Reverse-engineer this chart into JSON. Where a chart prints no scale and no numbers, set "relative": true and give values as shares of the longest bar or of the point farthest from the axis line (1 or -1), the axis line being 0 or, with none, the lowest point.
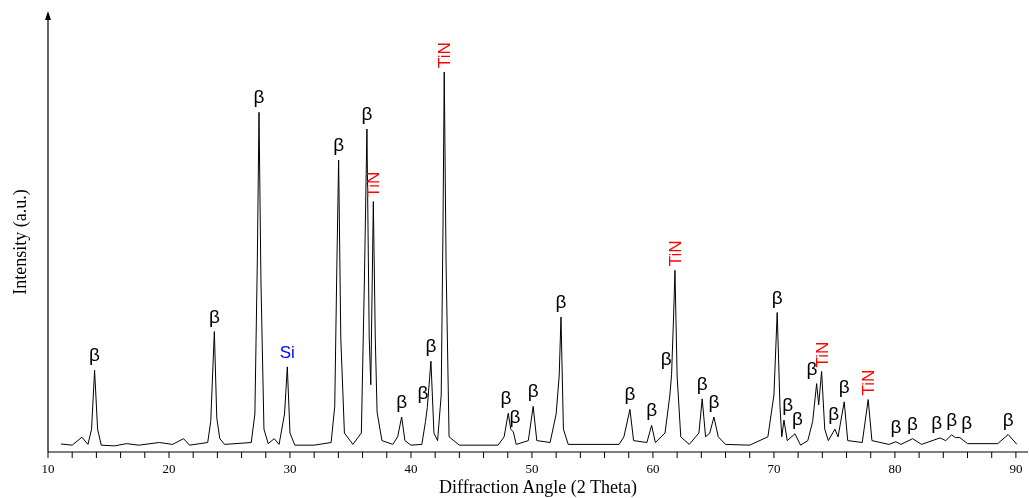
{
  "chart_data": {
    "type": "line",
    "relative": true,
    "xlabel": "Diffraction Angle (2 Theta)",
    "ylabel": "Intensity (a.u.)",
    "xlim": [
      10,
      91
    ],
    "xticks": [
      10,
      {
        "value": 12,
        "label": null
      },
      {
        "value": 14,
        "label": null
      },
      {
        "value": 16,
        "label": null
      },
      {
        "value": 18,
        "label": null
      },
      20,
      {
        "value": 22,
        "label": null
      },
      {
        "value": 24,
        "label": null
      },
      {
        "value": 26,
        "label": null
      },
      {
        "value": 28,
        "label": null
      },
      30,
      {
        "value": 32,
        "label": null
      },
      {
        "value": 34,
        "label": null
      },
      {
        "value": 36,
        "label": null
      },
      {
        "value": 38,
        "label": null
      },
      40,
      {
        "value": 42,
        "label": null
      },
      {
        "value": 44,
        "label": null
      },
      {
        "value": 46,
        "label": null
      },
      {
        "value": 48,
        "label": null
      },
      50,
      {
        "value": 52,
        "label": null
      },
      {
        "value": 54,
        "label": null
      },
      {
        "value": 56,
        "label": null
      },
      {
        "value": 58,
        "label": null
      },
      60,
      {
        "value": 62,
        "label": null
      },
      {
        "value": 64,
        "label": null
      },
      {
        "value": 66,
        "label": null
      },
      {
        "value": 68,
        "label": null
      },
      70,
      {
        "value": 72,
        "label": null
      },
      {
        "value": 74,
        "label": null
      },
      {
        "value": 76,
        "label": null
      },
      {
        "value": 78,
        "label": null
      },
      80,
      {
        "value": 82,
        "label": null
      },
      {
        "value": 84,
        "label": null
      },
      {
        "value": 86,
        "label": null
      },
      {
        "value": 88,
        "label": null
      },
      90
    ],
    "grid": false,
    "marker": "none",
    "line_style": "solid",
    "series": [
      {
        "color": "#000000",
        "x": [
          11.1,
          12.0,
          12.8,
          13.3,
          13.6,
          13.85,
          14.1,
          14.4,
          15.5,
          16.5,
          17.5,
          19.2,
          20.3,
          21.2,
          21.7,
          23.2,
          23.45,
          23.75,
          23.95,
          24.2,
          24.6,
          26.8,
          27.1,
          27.3,
          27.44,
          27.6,
          27.85,
          28.2,
          28.7,
          29.1,
          29.55,
          29.78,
          30.0,
          30.4,
          32.0,
          33.4,
          33.7,
          33.88,
          34.02,
          34.2,
          34.5,
          35.2,
          35.9,
          36.15,
          36.36,
          36.55,
          36.68,
          36.89,
          37.05,
          37.2,
          37.6,
          38.5,
          38.9,
          39.23,
          39.5,
          40.0,
          40.9,
          41.2,
          41.35,
          41.65,
          41.9,
          42.2,
          42.5,
          42.65,
          42.75,
          42.9,
          43.15,
          44.0,
          47.2,
          47.7,
          48.04,
          48.25,
          48.46,
          48.7,
          49.7,
          50.1,
          50.4,
          51.5,
          52.0,
          52.25,
          52.4,
          52.6,
          53.0,
          57.2,
          57.6,
          58.1,
          58.4,
          59.5,
          59.89,
          60.2,
          61.0,
          61.4,
          61.54,
          61.7,
          61.82,
          62.0,
          62.3,
          63.0,
          63.8,
          64.07,
          64.35,
          64.7,
          65.04,
          65.4,
          66.0,
          68.0,
          69.5,
          70.0,
          70.27,
          70.5,
          70.65,
          70.83,
          71.1,
          71.74,
          72.2,
          72.8,
          73.2,
          73.53,
          73.7,
          73.94,
          74.2,
          74.5,
          75.04,
          75.3,
          75.81,
          76.1,
          77.3,
          77.79,
          78.1,
          79.5,
          80.08,
          80.5,
          81.46,
          82.2,
          83.72,
          84.2,
          84.69,
          85.0,
          85.37,
          86.0,
          88.5,
          89.36,
          90.06
        ],
        "values": [
          0.021,
          0.018,
          0.039,
          0.02,
          0.06,
          0.215,
          0.06,
          0.018,
          0.016,
          0.022,
          0.018,
          0.025,
          0.02,
          0.035,
          0.018,
          0.025,
          0.08,
          0.317,
          0.09,
          0.035,
          0.02,
          0.025,
          0.1,
          0.5,
          0.894,
          0.45,
          0.06,
          0.022,
          0.035,
          0.02,
          0.1,
          0.224,
          0.05,
          0.018,
          0.018,
          0.025,
          0.12,
          0.5,
          0.768,
          0.3,
          0.05,
          0.02,
          0.05,
          0.45,
          0.85,
          0.3,
          0.177,
          0.659,
          0.3,
          0.105,
          0.03,
          0.02,
          0.04,
          0.092,
          0.03,
          0.018,
          0.02,
          0.08,
          0.117,
          0.239,
          0.05,
          0.03,
          0.15,
          0.6,
          1.0,
          0.5,
          0.04,
          0.018,
          0.018,
          0.04,
          0.102,
          0.06,
          0.053,
          0.02,
          0.03,
          0.12,
          0.03,
          0.025,
          0.1,
          0.2,
          0.355,
          0.06,
          0.02,
          0.02,
          0.04,
          0.112,
          0.03,
          0.025,
          0.07,
          0.025,
          0.05,
          0.15,
          0.204,
          0.35,
          0.478,
          0.2,
          0.04,
          0.02,
          0.05,
          0.14,
          0.04,
          0.05,
          0.092,
          0.04,
          0.02,
          0.018,
          0.04,
          0.15,
          0.367,
          0.12,
          0.04,
          0.084,
          0.03,
          0.048,
          0.018,
          0.03,
          0.08,
          0.18,
          0.124,
          0.212,
          0.06,
          0.03,
          0.06,
          0.04,
          0.132,
          0.03,
          0.025,
          0.138,
          0.03,
          0.02,
          0.027,
          0.02,
          0.035,
          0.02,
          0.037,
          0.03,
          0.045,
          0.038,
          0.038,
          0.022,
          0.022,
          0.046,
          0.021
        ]
      }
    ],
    "annotations": [
      {
        "text": "β",
        "x": 13.85,
        "y": 0.215
      },
      {
        "text": "β",
        "x": 23.75,
        "y": 0.317
      },
      {
        "text": "β",
        "x": 27.44,
        "y": 0.894
      },
      {
        "text": "Si",
        "x": 29.78,
        "y": 0.224
      },
      {
        "text": "β",
        "x": 34.02,
        "y": 0.768
      },
      {
        "text": "β",
        "x": 36.36,
        "y": 0.85
      },
      {
        "text": "TiN",
        "x": 36.89,
        "y": 0.659
      },
      {
        "text": "β",
        "x": 39.23,
        "y": 0.092
      },
      {
        "text": "β",
        "x": 41.0,
        "y": 0.117
      },
      {
        "text": "β",
        "x": 41.65,
        "y": 0.239
      },
      {
        "text": "TiN",
        "x": 42.75,
        "y": 1.0
      },
      {
        "text": "β",
        "x": 47.85,
        "y": 0.102
      },
      {
        "text": "β",
        "x": 48.6,
        "y": 0.053
      },
      {
        "text": "β",
        "x": 50.1,
        "y": 0.12
      },
      {
        "text": "β",
        "x": 52.4,
        "y": 0.355
      },
      {
        "text": "β",
        "x": 58.1,
        "y": 0.112
      },
      {
        "text": "β",
        "x": 59.89,
        "y": 0.07
      },
      {
        "text": "β",
        "x": 61.1,
        "y": 0.204
      },
      {
        "text": "TiN",
        "x": 61.82,
        "y": 0.478
      },
      {
        "text": "β",
        "x": 64.07,
        "y": 0.14
      },
      {
        "text": "β",
        "x": 65.04,
        "y": 0.092
      },
      {
        "text": "β",
        "x": 70.27,
        "y": 0.367
      },
      {
        "text": "β",
        "x": 71.15,
        "y": 0.084
      },
      {
        "text": "β",
        "x": 71.95,
        "y": 0.048
      },
      {
        "text": "β",
        "x": 73.15,
        "y": 0.18
      },
      {
        "text": "TiN",
        "x": 73.94,
        "y": 0.212
      },
      {
        "text": "β",
        "x": 74.95,
        "y": 0.06
      },
      {
        "text": "β",
        "x": 75.81,
        "y": 0.132
      },
      {
        "text": "TiN",
        "x": 77.79,
        "y": 0.138
      },
      {
        "text": "β",
        "x": 80.08,
        "y": 0.027
      },
      {
        "text": "β",
        "x": 81.46,
        "y": 0.035
      },
      {
        "text": "β",
        "x": 83.45,
        "y": 0.037
      },
      {
        "text": "β",
        "x": 84.69,
        "y": 0.045
      },
      {
        "text": "β",
        "x": 85.93,
        "y": 0.038
      },
      {
        "text": "β",
        "x": 89.36,
        "y": 0.046
      }
    ]
  }
}
